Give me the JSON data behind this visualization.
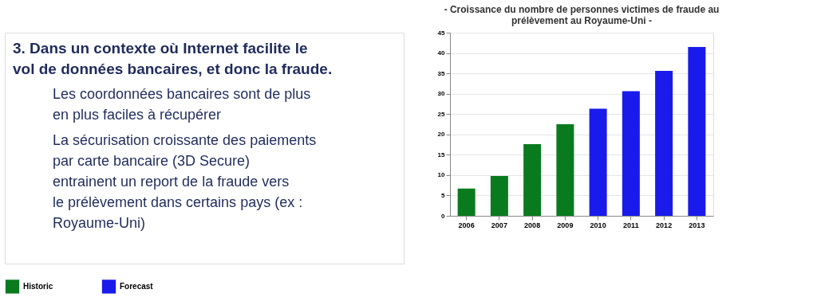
{
  "chart_data": {
    "type": "bar",
    "title": "- Croissance du nombre de personnes victimes de fraude au prélèvement au Royaume-Uni -",
    "categories": [
      "2006",
      "2007",
      "2008",
      "2009",
      "2010",
      "2011",
      "2012",
      "2013"
    ],
    "series": [
      {
        "name": "Historic",
        "color": "#0a7a1f",
        "values": [
          6.7,
          9.8,
          17.6,
          22.5,
          null,
          null,
          null,
          null
        ]
      },
      {
        "name": "Forecast",
        "color": "#1a1aeb",
        "values": [
          null,
          null,
          null,
          null,
          26.3,
          30.6,
          35.6,
          41.5
        ]
      }
    ],
    "ylim": [
      0,
      45
    ],
    "yticks": [
      0,
      5,
      10,
      15,
      20,
      25,
      30,
      35,
      40,
      45
    ],
    "grid": "y",
    "legend": "bottom",
    "annotations": [
      "3. Dans un contexte où Internet facilite le vol de données bancaires, et donc la fraude.",
      "Les coordonnées bancaires sont de plus en plus faciles à récupérer",
      "La sécurisation croissante des paiements par carte bancaire (3D Secure) entrainent un report de la fraude vers le prélèvement dans certains pays (ex : Royaume-Uni)"
    ]
  }
}
